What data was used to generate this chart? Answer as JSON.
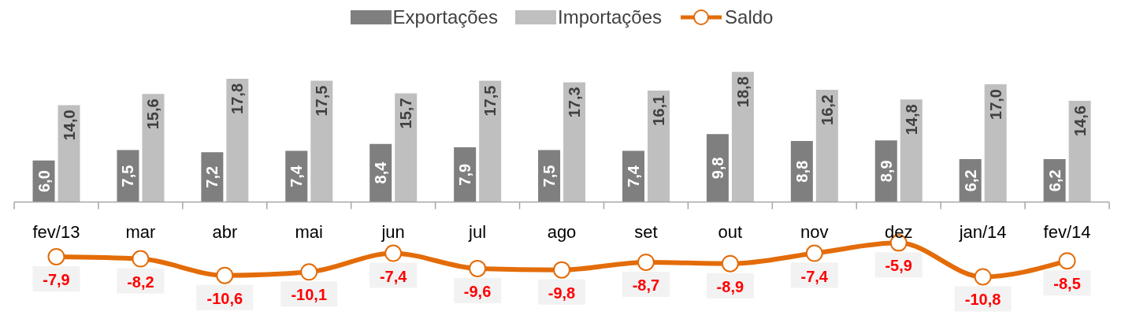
{
  "chart_data": {
    "type": "bar",
    "categories": [
      "fev/13",
      "mar",
      "abr",
      "mai",
      "jun",
      "jul",
      "ago",
      "set",
      "out",
      "nov",
      "dez",
      "jan/14",
      "fev/14"
    ],
    "series": [
      {
        "name": "Exportações",
        "color": "#7f7f7f",
        "values": [
          6.0,
          7.5,
          7.2,
          7.4,
          8.4,
          7.9,
          7.5,
          7.4,
          9.8,
          8.8,
          8.9,
          6.2,
          6.2
        ],
        "value_labels": [
          "6,0",
          "7,5",
          "7,2",
          "7,4",
          "8,4",
          "7,9",
          "7,5",
          "7,4",
          "9,8",
          "8,8",
          "8,9",
          "6,2",
          "6,2"
        ]
      },
      {
        "name": "Importações",
        "color": "#bfbfbf",
        "values": [
          14.0,
          15.6,
          17.8,
          17.5,
          15.7,
          17.5,
          17.3,
          16.1,
          18.8,
          16.2,
          14.8,
          17.0,
          14.6
        ],
        "value_labels": [
          "14,0",
          "15,6",
          "17,8",
          "17,5",
          "15,7",
          "17,5",
          "17,3",
          "16,1",
          "18,8",
          "16,2",
          "14,8",
          "17,0",
          "14,6"
        ]
      },
      {
        "name": "Saldo",
        "type": "line",
        "color": "#e36c09",
        "values": [
          -7.9,
          -8.2,
          -10.6,
          -10.1,
          -7.4,
          -9.6,
          -9.8,
          -8.7,
          -8.9,
          -7.4,
          -5.9,
          -10.8,
          -8.5
        ],
        "value_labels": [
          "-7,9",
          "-8,2",
          "-10,6",
          "-10,1",
          "-7,4",
          "-9,6",
          "-9,8",
          "-8,7",
          "-8,9",
          "-7,4",
          "-5,9",
          "-10,8",
          "-8,5"
        ]
      }
    ],
    "legend": "top",
    "marker": "circle",
    "line_style": "solid",
    "grid": false
  }
}
